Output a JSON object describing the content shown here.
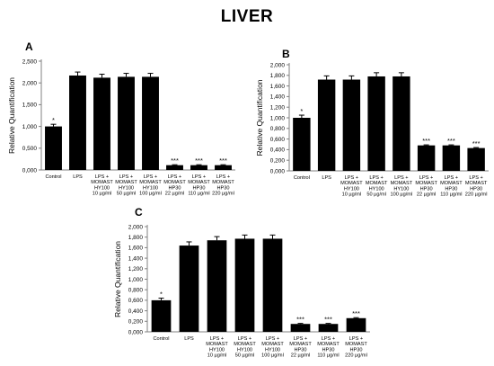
{
  "title": "LIVER",
  "chart_data": [
    {
      "type": "bar",
      "panel_label": "A",
      "ylabel": "Relative Quantification",
      "ylim": [
        0,
        2.5
      ],
      "yticks": [
        "0,000",
        "0,500",
        "1,000",
        "1,500",
        "2,000",
        "2,500"
      ],
      "yticks_values": [
        0,
        0.5,
        1.0,
        1.5,
        2.0,
        2.5
      ],
      "categories": [
        [
          "Control"
        ],
        [
          "LPS"
        ],
        [
          "LPS +",
          "MOMAST",
          "HY100",
          "10 µg/ml"
        ],
        [
          "LPS +",
          "MOMAST",
          "HY100",
          "50 µg/ml"
        ],
        [
          "LPS +",
          "MOMAST",
          "HY100",
          "100 µg/ml"
        ],
        [
          "LPS +",
          "MOMAST",
          "HP30",
          "22 µg/ml"
        ],
        [
          "LPS +",
          "MOMAST",
          "HP30",
          "110 µg/ml"
        ],
        [
          "LPS +",
          "MOMAST",
          "HP30",
          "220 µg/ml"
        ]
      ],
      "values": [
        1.0,
        2.17,
        2.12,
        2.14,
        2.14,
        0.11,
        0.11,
        0.11
      ],
      "errors": [
        0.05,
        0.08,
        0.08,
        0.08,
        0.08,
        0.01,
        0.01,
        0.01
      ],
      "significance": [
        "*",
        "",
        "",
        "",
        "",
        "***",
        "***",
        "***"
      ]
    },
    {
      "type": "bar",
      "panel_label": "B",
      "ylabel": "Relative Quantification",
      "ylim": [
        0,
        2.0
      ],
      "yticks": [
        "0,000",
        "0,200",
        "0,400",
        "0,600",
        "0,800",
        "1,000",
        "1,200",
        "1,400",
        "1,600",
        "1,800",
        "2,000"
      ],
      "yticks_values": [
        0,
        0.2,
        0.4,
        0.6,
        0.8,
        1.0,
        1.2,
        1.4,
        1.6,
        1.8,
        2.0
      ],
      "categories": [
        [
          "Control"
        ],
        [
          "LPS"
        ],
        [
          "LPS +",
          "MOMAST",
          "HY100",
          "10 µg/ml"
        ],
        [
          "LPS +",
          "MOMAST",
          "HY100",
          "50 µg/ml"
        ],
        [
          "LPS +",
          "MOMAST",
          "HY100",
          "100 µg/ml"
        ],
        [
          "LPS +",
          "MOMAST",
          "HP30",
          "22 µg/ml"
        ],
        [
          "LPS +",
          "MOMAST",
          "HP30",
          "110 µg/ml"
        ],
        [
          "LPS +",
          "MOMAST",
          "HP30",
          "220 µg/ml"
        ]
      ],
      "values": [
        1.0,
        1.72,
        1.72,
        1.78,
        1.78,
        0.48,
        0.48,
        0.43
      ],
      "errors": [
        0.05,
        0.07,
        0.07,
        0.07,
        0.07,
        0.01,
        0.01,
        0.01
      ],
      "significance": [
        "*",
        "",
        "",
        "",
        "",
        "***",
        "***",
        "***"
      ]
    },
    {
      "type": "bar",
      "panel_label": "C",
      "ylabel": "Relative Quantification",
      "ylim": [
        0,
        2.0
      ],
      "yticks": [
        "0,000",
        "0,200",
        "0,400",
        "0,600",
        "0,800",
        "1,000",
        "1,200",
        "1,400",
        "1,600",
        "1,800",
        "2,000"
      ],
      "yticks_values": [
        0,
        0.2,
        0.4,
        0.6,
        0.8,
        1.0,
        1.2,
        1.4,
        1.6,
        1.8,
        2.0
      ],
      "categories": [
        [
          "Control"
        ],
        [
          "LPS"
        ],
        [
          "LPS +",
          "MOMAST",
          "HY100",
          "10 µg/ml"
        ],
        [
          "LPS +",
          "MOMAST",
          "HY100",
          "50 µg/ml"
        ],
        [
          "LPS +",
          "MOMAST",
          "HY100",
          "100 µg/ml"
        ],
        [
          "LPS +",
          "MOMAST",
          "HP30",
          "22 µg/ml"
        ],
        [
          "LPS +",
          "MOMAST",
          "HP30",
          "110 µg/ml"
        ],
        [
          "LPS +",
          "MOMAST",
          "HP30",
          "220 µg/ml"
        ]
      ],
      "values": [
        0.6,
        1.64,
        1.74,
        1.77,
        1.77,
        0.15,
        0.15,
        0.26
      ],
      "errors": [
        0.04,
        0.07,
        0.07,
        0.07,
        0.07,
        0.01,
        0.01,
        0.01
      ],
      "significance": [
        "*",
        "",
        "",
        "",
        "",
        "***",
        "***",
        "***"
      ]
    }
  ]
}
